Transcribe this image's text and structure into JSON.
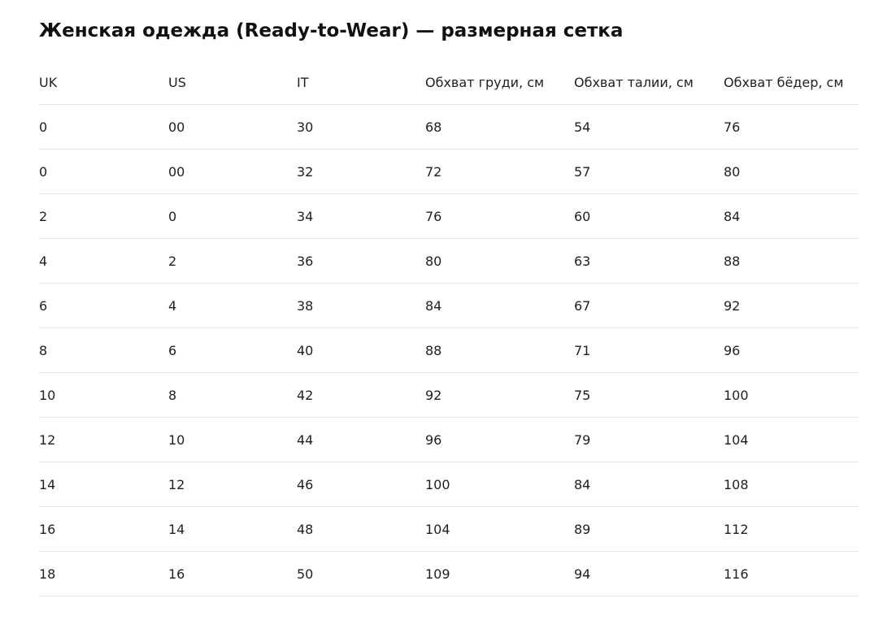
{
  "header": {
    "title": "Женская одежда (Ready-to-Wear) — размерная сетка"
  },
  "table": {
    "columns": [
      "UK",
      "US",
      "IT",
      "Обхват груди, см",
      "Обхват талии, см",
      "Обхват бёдер, см"
    ],
    "rows": [
      [
        "0",
        "00",
        "30",
        "68",
        "54",
        "76"
      ],
      [
        "0",
        "00",
        "32",
        "72",
        "57",
        "80"
      ],
      [
        "2",
        "0",
        "34",
        "76",
        "60",
        "84"
      ],
      [
        "4",
        "2",
        "36",
        "80",
        "63",
        "88"
      ],
      [
        "6",
        "4",
        "38",
        "84",
        "67",
        "92"
      ],
      [
        "8",
        "6",
        "40",
        "88",
        "71",
        "96"
      ],
      [
        "10",
        "8",
        "42",
        "92",
        "75",
        "100"
      ],
      [
        "12",
        "10",
        "44",
        "96",
        "79",
        "104"
      ],
      [
        "14",
        "12",
        "46",
        "100",
        "84",
        "108"
      ],
      [
        "16",
        "14",
        "48",
        "104",
        "89",
        "112"
      ],
      [
        "18",
        "16",
        "50",
        "109",
        "94",
        "116"
      ]
    ]
  }
}
